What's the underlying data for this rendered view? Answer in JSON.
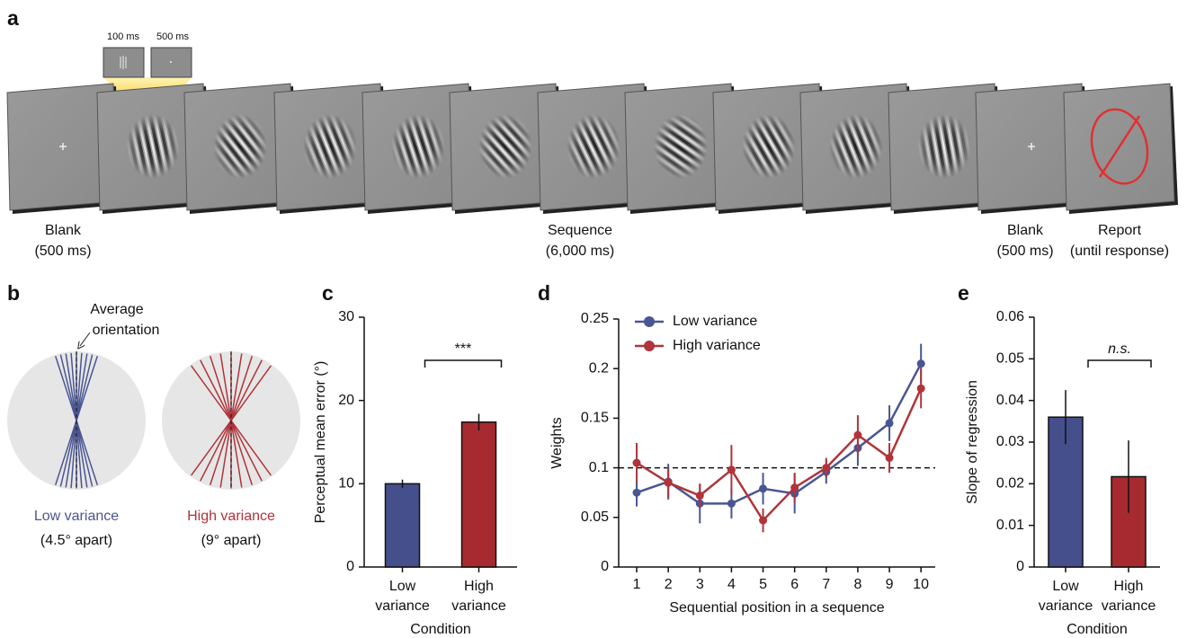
{
  "panel_labels": [
    "a",
    "b",
    "c",
    "d",
    "e"
  ],
  "panel_a": {
    "inset_labels": [
      "100 ms",
      "500 ms"
    ],
    "captions": [
      {
        "title": "Blank",
        "duration": "(500 ms)"
      },
      {
        "title": "Sequence",
        "duration": "(6,000 ms)"
      },
      {
        "title": "Blank",
        "duration": "(500 ms)"
      },
      {
        "title": "Report",
        "duration": "(until response)"
      }
    ]
  },
  "panel_b": {
    "annotation": [
      "Average",
      "orientation"
    ],
    "conditions": [
      {
        "name": "Low variance",
        "spacing": "(4.5° apart)",
        "color": "#4a5593"
      },
      {
        "name": "High variance",
        "spacing": "(9° apart)",
        "color": "#b0343a"
      }
    ]
  },
  "chart_data": [
    {
      "type": "bar",
      "categories": [
        "Low variance",
        "High variance"
      ],
      "values": [
        10,
        17.4
      ],
      "errors": [
        0.5,
        1.0
      ],
      "colors": [
        "#454f8c",
        "#a72a30"
      ],
      "ylim": [
        0,
        30
      ],
      "yticks": [
        0,
        10,
        20,
        30
      ],
      "ylabel": "Perceptual mean error (°)",
      "xlabel": "Condition",
      "annotation": "***"
    },
    {
      "type": "line",
      "x": [
        1,
        2,
        3,
        4,
        5,
        6,
        7,
        8,
        9,
        10
      ],
      "xlim": [
        0.43,
        10.45
      ],
      "xticks": [
        1,
        2,
        3,
        4,
        5,
        6,
        7,
        8,
        9,
        10
      ],
      "ylim": [
        0,
        0.25
      ],
      "yticks": [
        0,
        0.05,
        0.1,
        0.15,
        0.2,
        0.25
      ],
      "reference_line": 0.1,
      "xlabel": "Sequential position in a sequence",
      "ylabel": "Weights",
      "legend": "upper left",
      "series": [
        {
          "name": "Low variance",
          "color": "#4a5593",
          "values": [
            0.075,
            0.086,
            0.064,
            0.064,
            0.079,
            0.074,
            0.096,
            0.12,
            0.145,
            0.205
          ],
          "errors": [
            0.014,
            0.018,
            0.02,
            0.015,
            0.016,
            0.02,
            0.012,
            0.018,
            0.018,
            0.02
          ]
        },
        {
          "name": "High variance",
          "color": "#b0343a",
          "values": [
            0.105,
            0.085,
            0.072,
            0.098,
            0.047,
            0.08,
            0.1,
            0.133,
            0.11,
            0.18
          ],
          "errors": [
            0.02,
            0.015,
            0.012,
            0.025,
            0.012,
            0.015,
            0.01,
            0.02,
            0.015,
            0.02
          ]
        }
      ]
    },
    {
      "type": "bar",
      "categories": [
        "Low variance",
        "High variance"
      ],
      "values": [
        0.036,
        0.0217
      ],
      "errors": [
        0.0065,
        0.0087
      ],
      "colors": [
        "#454f8c",
        "#a72a30"
      ],
      "ylim": [
        0,
        0.06
      ],
      "yticks": [
        0,
        0.01,
        0.02,
        0.03,
        0.04,
        0.05,
        0.06
      ],
      "ylabel": "Slope of regression",
      "xlabel": "Condition",
      "annotation": "n.s."
    }
  ]
}
